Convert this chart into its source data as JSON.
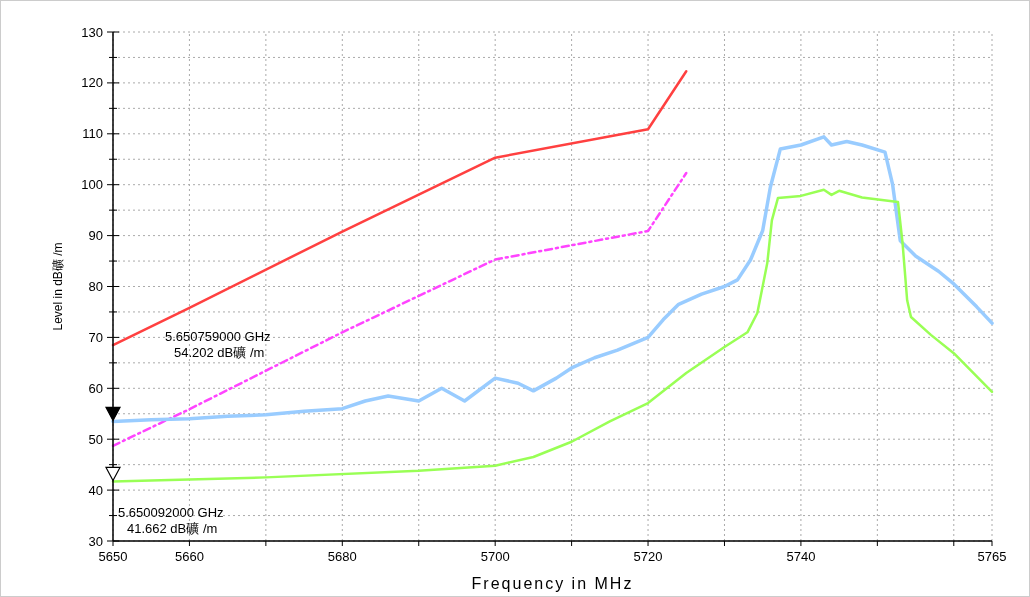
{
  "chart_data": {
    "type": "line",
    "xlabel": "Frequency in MHz",
    "ylabel": "Level in dB礦 /m",
    "xlim": [
      5650,
      5765
    ],
    "ylim": [
      30,
      130
    ],
    "xticks": [
      5650,
      5660,
      {
        "value": 5670,
        "label": null
      },
      5680,
      {
        "value": 5690,
        "label": null
      },
      5700,
      {
        "value": 5710,
        "label": null
      },
      5720,
      {
        "value": 5730,
        "label": null
      },
      5740,
      {
        "value": 5750,
        "label": null
      },
      {
        "value": 5760,
        "label": null
      },
      5765
    ],
    "yticks": [
      30,
      {
        "value": 35,
        "label": null
      },
      40,
      {
        "value": 45,
        "label": null
      },
      50,
      {
        "value": 55,
        "label": null
      },
      60,
      {
        "value": 65,
        "label": null
      },
      70,
      {
        "value": 75,
        "label": null
      },
      80,
      {
        "value": 85,
        "label": null
      },
      90,
      {
        "value": 95,
        "label": null
      },
      100,
      {
        "value": 105,
        "label": null
      },
      110,
      {
        "value": 115,
        "label": null
      },
      120,
      {
        "value": 125,
        "label": null
      },
      130
    ],
    "grid": true,
    "series": [
      {
        "color": "#ff4040",
        "line_style": "solid",
        "x": [
          5650,
          5660,
          5680,
          5700,
          5720,
          5725
        ],
        "values": [
          68.5,
          75.8,
          90.8,
          105.3,
          110.9,
          122.3
        ]
      },
      {
        "color": "#ff44ff",
        "line_style": "dashed",
        "x": [
          5650,
          5660,
          5680,
          5700,
          5720,
          5725
        ],
        "values": [
          48.7,
          55.9,
          71,
          85.3,
          90.9,
          102.3
        ]
      },
      {
        "color": "#99ccff",
        "line_style": "solid",
        "x": [
          5650,
          5655,
          5660,
          5665,
          5670,
          5675,
          5680,
          5683,
          5686,
          5690,
          5693,
          5696,
          5700,
          5703,
          5705,
          5708,
          5710,
          5713,
          5716,
          5720,
          5722,
          5724,
          5727,
          5730,
          5731.7,
          5733.4,
          5735,
          5736,
          5737.3,
          5740,
          5743,
          5744,
          5746,
          5748,
          5751,
          5752,
          5753,
          5755,
          5758,
          5760,
          5763,
          5765
        ],
        "values": [
          53.5,
          53.8,
          54,
          54.5,
          54.8,
          55.5,
          56,
          57.5,
          58.5,
          57.5,
          60,
          57.5,
          62,
          61,
          59.5,
          62,
          64,
          66,
          67.5,
          70,
          73.5,
          76.5,
          78.5,
          80,
          81.3,
          85.2,
          91,
          99.5,
          107,
          107.8,
          109.4,
          107.8,
          108.5,
          107.8,
          106.4,
          100,
          89,
          86,
          83,
          80.5,
          76,
          72.8
        ]
      },
      {
        "color": "#99ff55",
        "line_style": "solid",
        "x": [
          5650,
          5670,
          5690,
          5700,
          5705,
          5710,
          5715,
          5720,
          5725,
          5730,
          5733,
          5734.3,
          5735.6,
          5736.2,
          5737,
          5740,
          5743,
          5744,
          5745,
          5748,
          5752.7,
          5753.3,
          5753.9,
          5754.4,
          5757,
          5760,
          5765
        ],
        "values": [
          41.7,
          42.5,
          43.8,
          44.8,
          46.5,
          49.5,
          53.5,
          57.1,
          63,
          68.1,
          71,
          74.8,
          84.6,
          93,
          97.4,
          97.8,
          99,
          98,
          98.8,
          97.5,
          96.6,
          88.5,
          77.3,
          74,
          70.5,
          66.9,
          59.3
        ]
      }
    ],
    "annotations": [
      "5.650759000 GHz\n54.202 dB礦 /m",
      "5.650092000 GHz\n41.662 dB礦 /m"
    ]
  }
}
